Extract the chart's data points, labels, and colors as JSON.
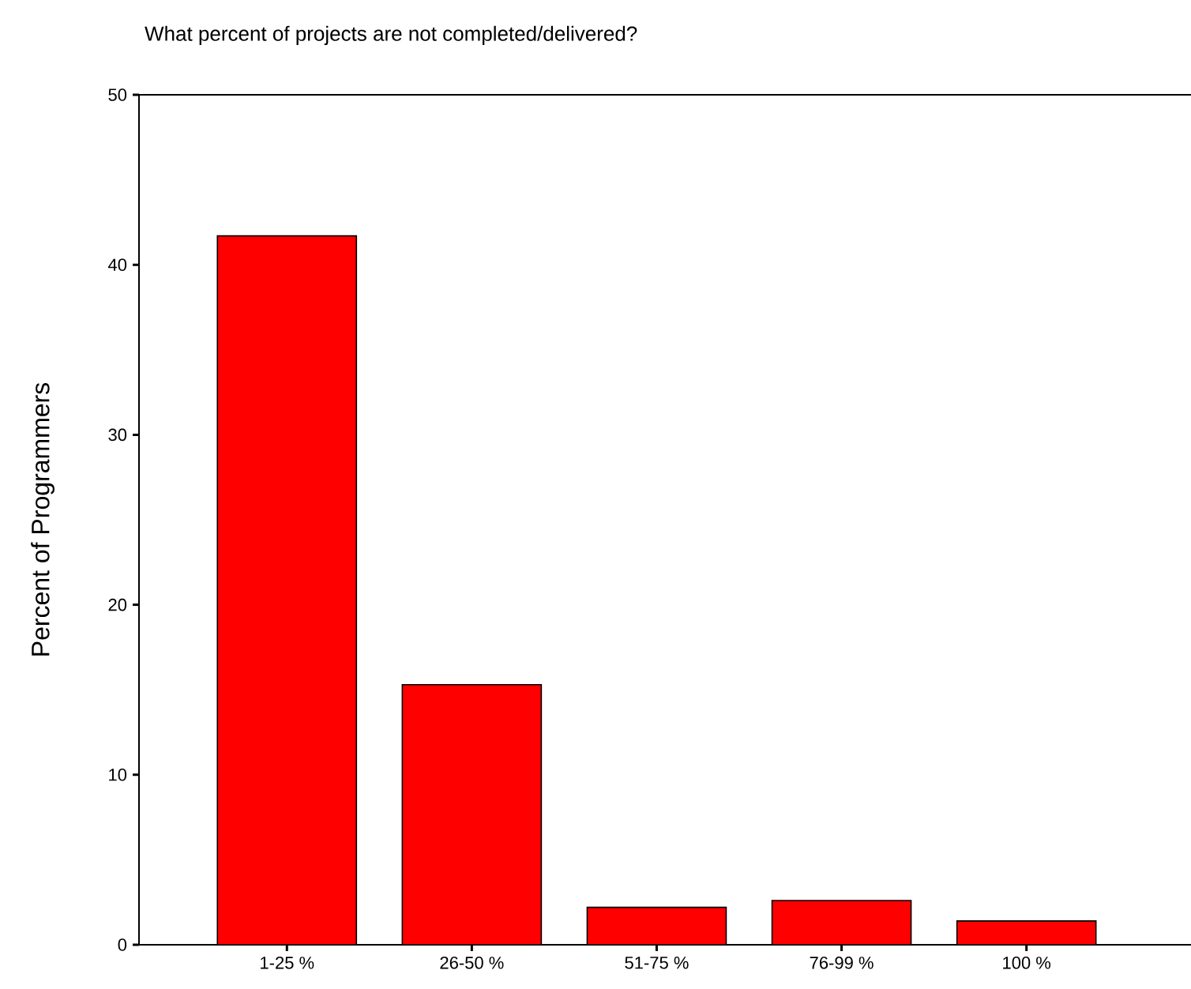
{
  "chart_data": {
    "type": "bar",
    "title": "What percent of projects are not completed/delivered?",
    "ylabel": "Percent of Programmers",
    "categories": [
      "1-25 %",
      "26-50 %",
      "51-75 %",
      "76-99 %",
      "100 %"
    ],
    "values": [
      41.7,
      15.3,
      2.2,
      2.6,
      1.4
    ],
    "color": "#ff0000",
    "ylim": [
      0,
      50
    ],
    "yticks": [
      0,
      10,
      20,
      30,
      40,
      50
    ],
    "grid": false
  }
}
